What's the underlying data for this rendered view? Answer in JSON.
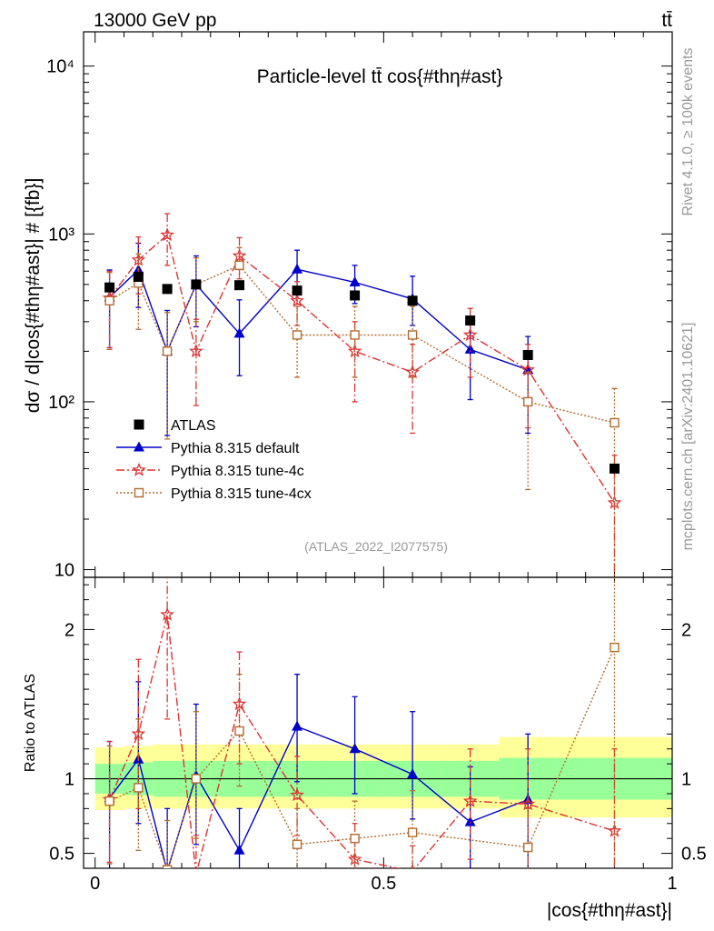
{
  "header": {
    "energy_label": "13000 GeV pp",
    "process_label": "tt̄"
  },
  "side_labels": {
    "rivet": "Rivet 4.1.0, ≥ 100k events",
    "mcplots": "mcplots.cern.ch [arXiv:2401.10621]"
  },
  "colors": {
    "atlas": "#000000",
    "default": "#0000cc",
    "tune4c": "#dd3333",
    "tune4cx": "#b36b2e",
    "band_inner": "#99ff99",
    "band_outer": "#ffff99"
  },
  "chart_data": [
    {
      "type": "scatter",
      "title": "Particle-level tt̄ cos{#thη#ast}",
      "analysis_id": "(ATLAS_2022_I2077575)",
      "ylabel": "dσ / d|cos{#thη#ast}| # [{fb}]",
      "xlabel": "|cos{#thη#ast}|",
      "yscale": "log",
      "ylim": [
        9,
        16000
      ],
      "xlim": [
        -0.02,
        1.0
      ],
      "ytick_labels": [
        "10",
        "10²",
        "10³",
        "10⁴"
      ],
      "ytick_values": [
        10,
        100,
        1000,
        10000
      ],
      "x": [
        0.025,
        0.075,
        0.125,
        0.175,
        0.25,
        0.35,
        0.45,
        0.55,
        0.65,
        0.75,
        0.9
      ],
      "series": [
        {
          "name": "ATLAS",
          "style": "data",
          "values": [
            480,
            555,
            470,
            500,
            495,
            460,
            430,
            400,
            305,
            190,
            40
          ]
        },
        {
          "name": "Pythia 8.315 default",
          "style": "default",
          "values": [
            420,
            610,
            200,
            500,
            255,
            615,
            515,
            410,
            205,
            155,
            null
          ],
          "err_up": [
            610,
            880,
            350,
            740,
            405,
            800,
            650,
            560,
            320,
            245,
            null
          ],
          "err_dn": [
            210,
            365,
            63,
            280,
            143,
            445,
            385,
            285,
            103,
            65,
            null
          ]
        },
        {
          "name": "Pythia 8.315 tune-4c",
          "style": "tune4c",
          "values": [
            415,
            700,
            985,
            200,
            740,
            400,
            200,
            150,
            250,
            155,
            25
          ],
          "err_up": [
            600,
            960,
            1320,
            310,
            950,
            520,
            300,
            220,
            360,
            220,
            48
          ],
          "err_dn": [
            210,
            440,
            650,
            95,
            540,
            285,
            100,
            65,
            140,
            70,
            6
          ]
        },
        {
          "name": "Pythia 8.315 tune-4cx",
          "style": "tune4cx",
          "values": [
            400,
            510,
            200,
            500,
            650,
            250,
            250,
            250,
            null,
            100,
            75
          ],
          "err_up": [
            590,
            760,
            340,
            720,
            830,
            370,
            370,
            370,
            null,
            150,
            120
          ],
          "err_dn": [
            205,
            270,
            60,
            300,
            470,
            140,
            140,
            140,
            null,
            30,
            8
          ]
        }
      ]
    },
    {
      "type": "scatter",
      "title": "Ratio",
      "ylabel": "Ratio to ATLAS",
      "ylim": [
        0.4,
        2.35
      ],
      "ytick_labels": [
        "0.5",
        "1",
        "2"
      ],
      "ytick_values": [
        0.5,
        1,
        2
      ],
      "xtick_labels": [
        "0",
        "0.5",
        "1"
      ],
      "xtick_values": [
        0,
        0.5,
        1
      ],
      "band_edges": [
        0,
        0.05,
        0.1,
        0.15,
        0.2,
        0.3,
        0.4,
        0.5,
        0.6,
        0.7,
        0.8,
        1.0
      ],
      "band_inner": [
        [
          0.9,
          1.1
        ],
        [
          0.89,
          1.11
        ],
        [
          0.88,
          1.12
        ],
        [
          0.88,
          1.12
        ],
        [
          0.88,
          1.12
        ],
        [
          0.88,
          1.12
        ],
        [
          0.88,
          1.12
        ],
        [
          0.88,
          1.12
        ],
        [
          0.88,
          1.12
        ],
        [
          0.86,
          1.14
        ],
        [
          0.86,
          1.14
        ]
      ],
      "band_outer": [
        [
          0.79,
          1.21
        ],
        [
          0.8,
          1.22
        ],
        [
          0.8,
          1.23
        ],
        [
          0.8,
          1.23
        ],
        [
          0.8,
          1.23
        ],
        [
          0.8,
          1.23
        ],
        [
          0.8,
          1.23
        ],
        [
          0.8,
          1.23
        ],
        [
          0.8,
          1.23
        ],
        [
          0.74,
          1.28
        ],
        [
          0.74,
          1.28
        ]
      ],
      "x": [
        0.025,
        0.075,
        0.125,
        0.175,
        0.25,
        0.35,
        0.45,
        0.55,
        0.65,
        0.75,
        0.9
      ],
      "series": [
        {
          "name": "Pythia 8.315 default",
          "style": "default",
          "values": [
            0.87,
            1.13,
            0.38,
            1.02,
            0.52,
            1.35,
            1.2,
            1.03,
            0.71,
            0.86,
            null
          ],
          "err_up": [
            1.25,
            1.65,
            0.8,
            1.5,
            0.8,
            1.7,
            1.55,
            1.45,
            1.08,
            1.3,
            null
          ],
          "err_dn": [
            0.37,
            0.7,
            0.16,
            0.56,
            0.3,
            0.98,
            0.9,
            0.73,
            0.35,
            0.33,
            null
          ]
        },
        {
          "name": "Pythia 8.315 tune-4c",
          "style": "tune4c",
          "values": [
            0.86,
            1.3,
            2.1,
            0.36,
            1.5,
            0.89,
            0.46,
            0.38,
            0.85,
            0.83,
            0.65
          ],
          "err_up": [
            1.25,
            1.8,
            2.5,
            0.62,
            1.85,
            1.15,
            0.7,
            0.55,
            1.2,
            1.2,
            1.2
          ],
          "err_dn": [
            0.44,
            0.8,
            1.4,
            0.2,
            1.1,
            0.62,
            0.24,
            0.17,
            0.46,
            0.36,
            0.16
          ]
        },
        {
          "name": "Pythia 8.315 tune-4cx",
          "style": "tune4cx",
          "values": [
            0.85,
            0.94,
            0.39,
            1.0,
            1.32,
            0.56,
            0.6,
            0.64,
            null,
            0.54,
            1.88
          ],
          "err_up": [
            1.22,
            1.4,
            0.72,
            1.45,
            1.7,
            0.8,
            0.85,
            0.92,
            null,
            0.8,
            2.4
          ],
          "err_dn": [
            0.43,
            0.52,
            0.2,
            0.6,
            0.95,
            0.32,
            0.35,
            0.36,
            null,
            0.16,
            0.2
          ]
        }
      ]
    }
  ],
  "legend": [
    {
      "label": "ATLAS",
      "style": "data"
    },
    {
      "label": "Pythia 8.315 default",
      "style": "default"
    },
    {
      "label": "Pythia 8.315 tune-4c",
      "style": "tune4c"
    },
    {
      "label": "Pythia 8.315 tune-4cx",
      "style": "tune4cx"
    }
  ]
}
